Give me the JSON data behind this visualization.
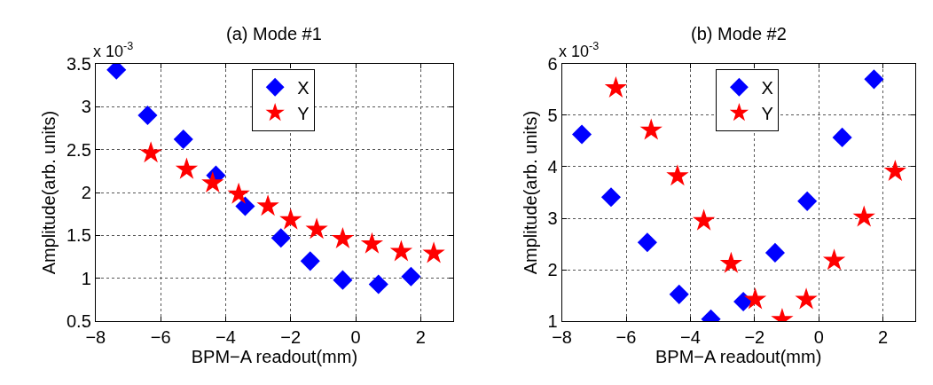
{
  "chart_data": [
    {
      "type": "scatter",
      "title": "(a) Mode #1",
      "xlabel": "BPM−A readout(mm)",
      "ylabel": "Amplitude(arb. units)",
      "annotations": [
        "x 10$^{-3}$"
      ],
      "xlim": [
        -8,
        3
      ],
      "xticks": [
        {
          "value": -8,
          "label": "−8"
        },
        {
          "value": -6,
          "label": "−6"
        },
        {
          "value": -4,
          "label": "−4"
        },
        {
          "value": -2,
          "label": "−2"
        },
        0,
        2
      ],
      "ylim": [
        0.5,
        3.5
      ],
      "yticks": [
        0.5,
        1,
        1.5,
        2,
        2.5,
        3,
        3.5
      ],
      "grid": true,
      "legend": "top",
      "series": [
        {
          "name": "X",
          "color": "#0000ff",
          "marker": "diamond",
          "x": [
            -7.36,
            -6.4,
            -5.3,
            -4.3,
            -3.4,
            -2.3,
            -1.4,
            -0.4,
            0.7,
            1.7
          ],
          "values": [
            3.43,
            2.9,
            2.62,
            2.2,
            1.84,
            1.47,
            1.2,
            0.98,
            0.93,
            1.02
          ]
        },
        {
          "name": "Y",
          "color": "#ff0000",
          "marker": "star",
          "x": [
            -6.3,
            -5.2,
            -4.4,
            -3.6,
            -2.7,
            -2.0,
            -1.2,
            -0.4,
            0.5,
            1.4,
            2.4
          ],
          "values": [
            2.46,
            2.27,
            2.11,
            1.98,
            1.84,
            1.68,
            1.57,
            1.46,
            1.4,
            1.31,
            1.29
          ]
        }
      ]
    },
    {
      "type": "scatter",
      "title": "(b) Mode #2",
      "xlabel": "BPM−A readout(mm)",
      "ylabel": "Amplitude(arb. units)",
      "annotations": [
        "x 10$^{-3}$"
      ],
      "xlim": [
        -8,
        3
      ],
      "xticks": [
        {
          "value": -8,
          "label": "−8"
        },
        {
          "value": -6,
          "label": "−6"
        },
        {
          "value": -4,
          "label": "−4"
        },
        {
          "value": -2,
          "label": "−2"
        },
        0,
        2
      ],
      "ylim": [
        1,
        6
      ],
      "yticks": [
        1,
        2,
        3,
        4,
        5,
        6
      ],
      "grid": true,
      "legend": "top",
      "series": [
        {
          "name": "X",
          "color": "#0000ff",
          "marker": "diamond",
          "x": [
            -7.38,
            -6.47,
            -5.34,
            -4.35,
            -3.36,
            -2.35,
            -1.36,
            -0.36,
            0.73,
            1.72
          ],
          "values": [
            4.63,
            3.41,
            2.53,
            1.52,
            1.04,
            1.38,
            2.33,
            3.33,
            4.57,
            5.7
          ]
        },
        {
          "name": "Y",
          "color": "#ff0000",
          "marker": "star",
          "x": [
            -6.32,
            -5.22,
            -4.4,
            -3.58,
            -2.73,
            -1.98,
            -1.14,
            -0.39,
            0.48,
            1.41,
            2.38
          ],
          "values": [
            5.53,
            4.71,
            3.82,
            2.95,
            2.12,
            1.42,
            1.03,
            1.42,
            2.18,
            3.02,
            3.91
          ]
        }
      ]
    }
  ]
}
